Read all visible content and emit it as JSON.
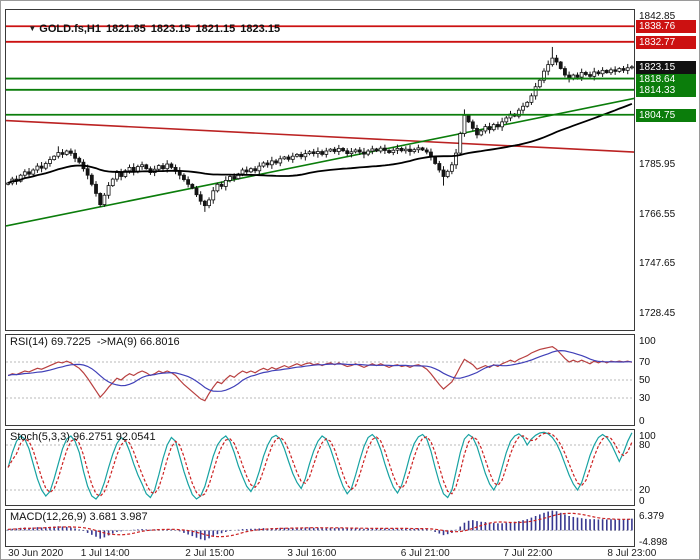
{
  "header": {
    "symbol": "GOLD.fs,H1",
    "open": "1821.85",
    "high": "1823.15",
    "low": "1821.15",
    "close": "1823.15"
  },
  "panel_labels": {
    "rsi": "RSI(14) 69.7225  ->MA(9) 66.8016",
    "stoch": "Stoch(5,3,3) 96.2751 92.0541",
    "macd": "MACD(12,26,9) 3.681 3.987"
  },
  "colors": {
    "resistance": "#cc1111",
    "support": "#0b7d0b",
    "current_badge": "#111111",
    "candle": "#141414",
    "ma_main": "#000000",
    "rsi_line": "#b84040",
    "rsi_ma": "#4040b8",
    "stoch_main": "#17a2a2",
    "stoch_signal": "#cc2222",
    "macd_hist": "#383890",
    "macd_signal": "#cc2222"
  },
  "time_axis": {
    "labels": [
      {
        "text": "30 Jun 2020",
        "pos": 0.005,
        "align": "left"
      },
      {
        "text": "1 Jul 14:00",
        "pos": 0.159,
        "align": "center"
      },
      {
        "text": "2 Jul 15:00",
        "pos": 0.325,
        "align": "center"
      },
      {
        "text": "3 Jul 16:00",
        "pos": 0.487,
        "align": "center"
      },
      {
        "text": "6 Jul 21:00",
        "pos": 0.667,
        "align": "center"
      },
      {
        "text": "7 Jul 22:00",
        "pos": 0.83,
        "align": "center"
      },
      {
        "text": "8 Jul 23:00",
        "pos": 0.995,
        "align": "center"
      }
    ]
  },
  "chart_data": [
    {
      "type": "candlestick",
      "title": "GOLD.fs,H1",
      "ylim": [
        1722,
        1845
      ],
      "ma_period": 50,
      "closes": [
        1778.5,
        1780.0,
        1779.2,
        1781.5,
        1782.8,
        1781.9,
        1783.5,
        1785.0,
        1784.2,
        1786.0,
        1787.5,
        1788.8,
        1790.2,
        1789.5,
        1790.8,
        1789.9,
        1788.0,
        1786.5,
        1784.0,
        1781.5,
        1778.0,
        1774.5,
        1770.2,
        1773.8,
        1777.5,
        1780.0,
        1782.5,
        1781.0,
        1783.2,
        1784.5,
        1783.0,
        1784.8,
        1785.5,
        1784.0,
        1782.5,
        1783.8,
        1785.2,
        1784.0,
        1785.8,
        1784.5,
        1783.0,
        1781.5,
        1779.8,
        1778.0,
        1776.5,
        1774.0,
        1771.5,
        1769.8,
        1772.0,
        1775.5,
        1778.0,
        1777.2,
        1779.5,
        1781.0,
        1780.2,
        1782.0,
        1783.5,
        1782.8,
        1784.0,
        1783.2,
        1785.0,
        1786.2,
        1785.5,
        1787.0,
        1786.2,
        1787.8,
        1788.5,
        1787.6,
        1788.8,
        1789.5,
        1788.6,
        1789.8,
        1790.5,
        1789.8,
        1790.6,
        1789.5,
        1790.8,
        1791.5,
        1790.6,
        1791.8,
        1790.9,
        1789.8,
        1790.5,
        1791.2,
        1790.4,
        1789.6,
        1790.8,
        1791.6,
        1790.8,
        1791.9,
        1791.0,
        1790.2,
        1791.1,
        1791.8,
        1790.9,
        1791.5,
        1790.6,
        1791.3,
        1792.0,
        1791.2,
        1790.4,
        1788.5,
        1786.0,
        1783.5,
        1781.0,
        1783.0,
        1785.5,
        1790.0,
        1797.5,
        1804.5,
        1802.0,
        1799.5,
        1797.0,
        1798.5,
        1800.2,
        1799.0,
        1801.0,
        1800.1,
        1802.0,
        1803.5,
        1805.0,
        1804.2,
        1806.5,
        1808.0,
        1809.5,
        1812.0,
        1815.5,
        1818.0,
        1821.5,
        1824.0,
        1826.5,
        1825.0,
        1822.5,
        1820.0,
        1818.5,
        1820.0,
        1819.2,
        1821.0,
        1820.2,
        1819.5,
        1821.2,
        1820.5,
        1821.8,
        1820.9,
        1822.0,
        1821.4,
        1822.5,
        1821.8,
        1822.8,
        1823.15
      ],
      "spikes": {
        "12": {
          "high": 1792.6
        },
        "22": {
          "low": 1769.3
        },
        "47": {
          "low": 1767.4
        },
        "104": {
          "low": 1777.5
        },
        "109": {
          "high": 1806.8
        },
        "130": {
          "high": 1830.8
        }
      },
      "levels": [
        {
          "value": 1838.76,
          "color": "#cc1111",
          "kind": "resistance"
        },
        {
          "value": 1832.77,
          "color": "#cc1111",
          "kind": "resistance"
        },
        {
          "value": 1818.64,
          "color": "#0b7d0b",
          "kind": "support"
        },
        {
          "value": 1814.33,
          "color": "#0b7d0b",
          "kind": "support"
        },
        {
          "value": 1804.75,
          "color": "#0b7d0b",
          "kind": "support"
        }
      ],
      "current_price": 1823.15,
      "trendlines": [
        {
          "from": [
            0,
            1802.5
          ],
          "to": [
            150,
            1790.4
          ],
          "color": "#bb2222"
        },
        {
          "from": [
            0,
            1762.0
          ],
          "to": [
            150,
            1811.0
          ],
          "color": "#0b7d0b"
        }
      ],
      "plain_axis_labels": [
        "1842.85",
        "1785.95",
        "1766.55",
        "1747.65",
        "1728.45"
      ]
    },
    {
      "type": "line",
      "label": "RSI(14) 69.7225  ->MA(9) 66.8016",
      "ylim": [
        0,
        100
      ],
      "levels": [
        70,
        50,
        30
      ],
      "axis_labels": [
        "100",
        "70",
        "50",
        "30",
        "0"
      ],
      "ma_period": 9,
      "color": "#b84040",
      "ma_color": "#4040b8",
      "values": [
        55,
        57,
        56,
        58,
        60,
        59,
        61,
        63,
        62,
        64,
        66,
        68,
        70,
        69,
        71,
        69,
        66,
        63,
        58,
        52,
        45,
        38,
        31,
        36,
        42,
        47,
        52,
        50,
        54,
        57,
        55,
        58,
        60,
        58,
        55,
        57,
        60,
        58,
        60,
        58,
        55,
        50,
        45,
        41,
        37,
        33,
        29,
        27,
        35,
        42,
        48,
        46,
        51,
        55,
        53,
        57,
        60,
        58,
        60,
        58,
        61,
        63,
        61,
        64,
        62,
        64,
        66,
        64,
        66,
        68,
        66,
        68,
        69,
        67,
        68,
        66,
        68,
        69,
        67,
        69,
        67,
        65,
        66,
        68,
        66,
        64,
        66,
        68,
        66,
        68,
        66,
        64,
        66,
        67,
        65,
        66,
        64,
        66,
        67,
        65,
        62,
        57,
        51,
        45,
        40,
        44,
        48,
        56,
        65,
        73,
        70,
        67,
        62,
        64,
        66,
        64,
        67,
        65,
        68,
        70,
        72,
        70,
        73,
        75,
        77,
        80,
        82,
        84,
        85,
        86,
        87,
        84,
        79,
        74,
        70,
        72,
        70,
        72,
        70,
        68,
        71,
        69,
        71,
        69,
        71,
        70,
        71,
        70,
        71,
        69.72
      ]
    },
    {
      "type": "line",
      "label": "Stoch(5,3,3) 96.2751 92.0541",
      "ylim": [
        0,
        100
      ],
      "levels": [
        80,
        20
      ],
      "axis_labels": [
        "100",
        "80",
        "20",
        "0"
      ],
      "signal_period": 3,
      "signal_dash": true,
      "color": "#17a2a2",
      "ma_color": "#cc2222",
      "values": [
        50,
        70,
        85,
        92,
        88,
        75,
        55,
        35,
        20,
        12,
        18,
        35,
        55,
        75,
        88,
        92,
        85,
        70,
        45,
        25,
        12,
        8,
        15,
        30,
        50,
        68,
        82,
        90,
        86,
        72,
        55,
        40,
        28,
        15,
        10,
        20,
        40,
        62,
        80,
        90,
        85,
        65,
        45,
        28,
        14,
        8,
        12,
        25,
        45,
        65,
        80,
        88,
        92,
        85,
        70,
        52,
        38,
        25,
        18,
        28,
        45,
        65,
        80,
        90,
        93,
        88,
        75,
        58,
        42,
        30,
        22,
        35,
        55,
        72,
        85,
        92,
        88,
        75,
        58,
        40,
        25,
        15,
        22,
        40,
        60,
        78,
        90,
        94,
        88,
        74,
        55,
        38,
        24,
        16,
        26,
        45,
        66,
        82,
        91,
        94,
        88,
        72,
        50,
        30,
        15,
        10,
        20,
        45,
        70,
        88,
        94,
        90,
        78,
        60,
        42,
        28,
        20,
        30,
        50,
        70,
        85,
        92,
        95,
        90,
        80,
        88,
        93,
        96,
        97,
        95,
        90,
        82,
        70,
        55,
        40,
        28,
        20,
        30,
        48,
        66,
        80,
        90,
        94,
        90,
        82,
        70,
        58,
        70,
        85,
        96.28
      ]
    },
    {
      "type": "histogram",
      "label": "MACD(12,26,9) 3.681 3.987",
      "ylim": [
        -4.898,
        6.379
      ],
      "axis_labels": [
        "6.379",
        "-4.898"
      ],
      "signal_period": 9,
      "color": "#383890",
      "signal_color": "#cc2222",
      "values": [
        0.3,
        0.5,
        0.6,
        0.8,
        0.9,
        0.8,
        0.9,
        1.0,
        0.9,
        1.0,
        1.1,
        1.2,
        1.3,
        1.2,
        1.1,
        0.9,
        0.6,
        0.3,
        -0.2,
        -0.8,
        -1.4,
        -2.0,
        -2.6,
        -2.2,
        -1.6,
        -1.0,
        -0.5,
        -0.3,
        -0.1,
        0.1,
        0.2,
        0.3,
        0.4,
        0.3,
        0.2,
        0.3,
        0.4,
        0.3,
        0.4,
        0.3,
        0.1,
        -0.3,
        -0.8,
        -1.3,
        -1.8,
        -2.3,
        -2.8,
        -3.1,
        -2.5,
        -1.8,
        -1.2,
        -0.9,
        -0.5,
        -0.2,
        0.0,
        0.2,
        0.4,
        0.4,
        0.5,
        0.5,
        0.6,
        0.7,
        0.6,
        0.7,
        0.7,
        0.8,
        0.8,
        0.7,
        0.8,
        0.9,
        0.8,
        0.9,
        0.9,
        0.8,
        0.8,
        0.7,
        0.7,
        0.8,
        0.7,
        0.8,
        0.7,
        0.6,
        0.6,
        0.7,
        0.6,
        0.5,
        0.6,
        0.7,
        0.6,
        0.7,
        0.6,
        0.5,
        0.6,
        0.6,
        0.5,
        0.6,
        0.5,
        0.5,
        0.6,
        0.5,
        0.4,
        0.0,
        -0.5,
        -1.0,
        -1.5,
        -1.2,
        -0.8,
        0.2,
        1.2,
        2.4,
        3.0,
        3.2,
        2.9,
        2.7,
        2.6,
        2.4,
        2.3,
        2.2,
        2.2,
        2.4,
        2.6,
        2.7,
        2.9,
        3.2,
        3.5,
        4.0,
        4.5,
        5.0,
        5.5,
        5.9,
        6.2,
        6.0,
        5.5,
        5.0,
        4.5,
        4.2,
        4.0,
        3.8,
        3.6,
        3.5,
        3.5,
        3.4,
        3.5,
        3.4,
        3.5,
        3.4,
        3.5,
        3.5,
        3.6,
        3.68
      ]
    }
  ]
}
